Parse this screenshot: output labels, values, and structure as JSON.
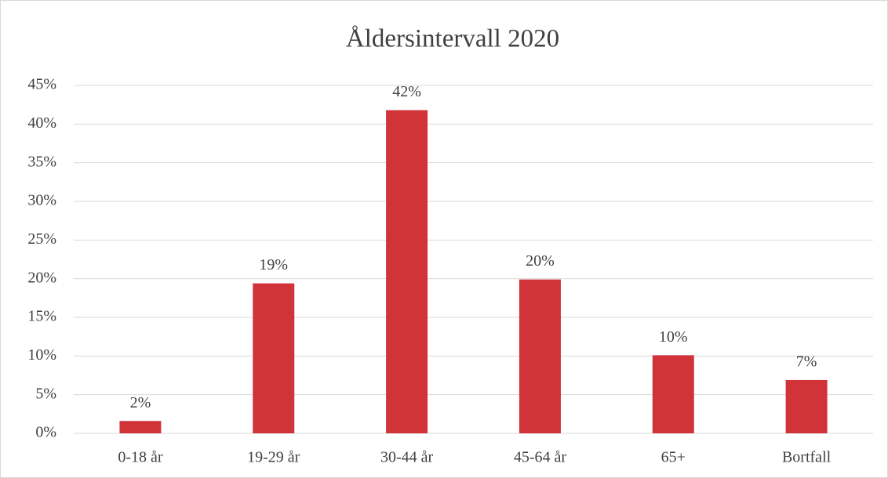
{
  "chart_data": {
    "type": "bar",
    "title": "Åldersintervall 2020",
    "categories": [
      "0-18 år",
      "19-29 år",
      "30-44 år",
      "45-64 år",
      "65+",
      "Bortfall"
    ],
    "values": [
      1.6,
      19.4,
      41.8,
      19.9,
      10.1,
      6.9
    ],
    "value_labels": [
      "2%",
      "19%",
      "42%",
      "20%",
      "10%",
      "7%"
    ],
    "color": "#d13438",
    "ylim": [
      0,
      45
    ],
    "yticks": [
      {
        "value": 0,
        "label": "0%"
      },
      {
        "value": 5,
        "label": "5%"
      },
      {
        "value": 10,
        "label": "10%"
      },
      {
        "value": 15,
        "label": "15%"
      },
      {
        "value": 20,
        "label": "20%"
      },
      {
        "value": 25,
        "label": "25%"
      },
      {
        "value": 30,
        "label": "30%"
      },
      {
        "value": 35,
        "label": "35%"
      },
      {
        "value": 40,
        "label": "40%"
      },
      {
        "value": 45,
        "label": "45%"
      }
    ],
    "grid": true
  }
}
